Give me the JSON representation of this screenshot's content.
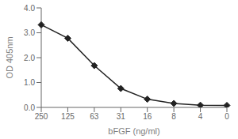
{
  "chart_data": {
    "type": "line",
    "categories": [
      "250",
      "125",
      "63",
      "31",
      "16",
      "8",
      "4",
      "0"
    ],
    "values": [
      3.32,
      2.78,
      1.68,
      0.76,
      0.33,
      0.16,
      0.09,
      0.08
    ],
    "xlabel": "bFGF (ng/ml)",
    "ylabel": "OD 405nm",
    "ylim": [
      0.0,
      4.0
    ],
    "yticks": [
      {
        "value": 0,
        "label": "0.0"
      },
      {
        "value": 1,
        "label": "1.0"
      },
      {
        "value": 2,
        "label": "2.0"
      },
      {
        "value": 3,
        "label": "3.0"
      },
      {
        "value": 4,
        "label": "4.0"
      }
    ],
    "color": "#222222",
    "marker": "diamond",
    "grid": false
  }
}
